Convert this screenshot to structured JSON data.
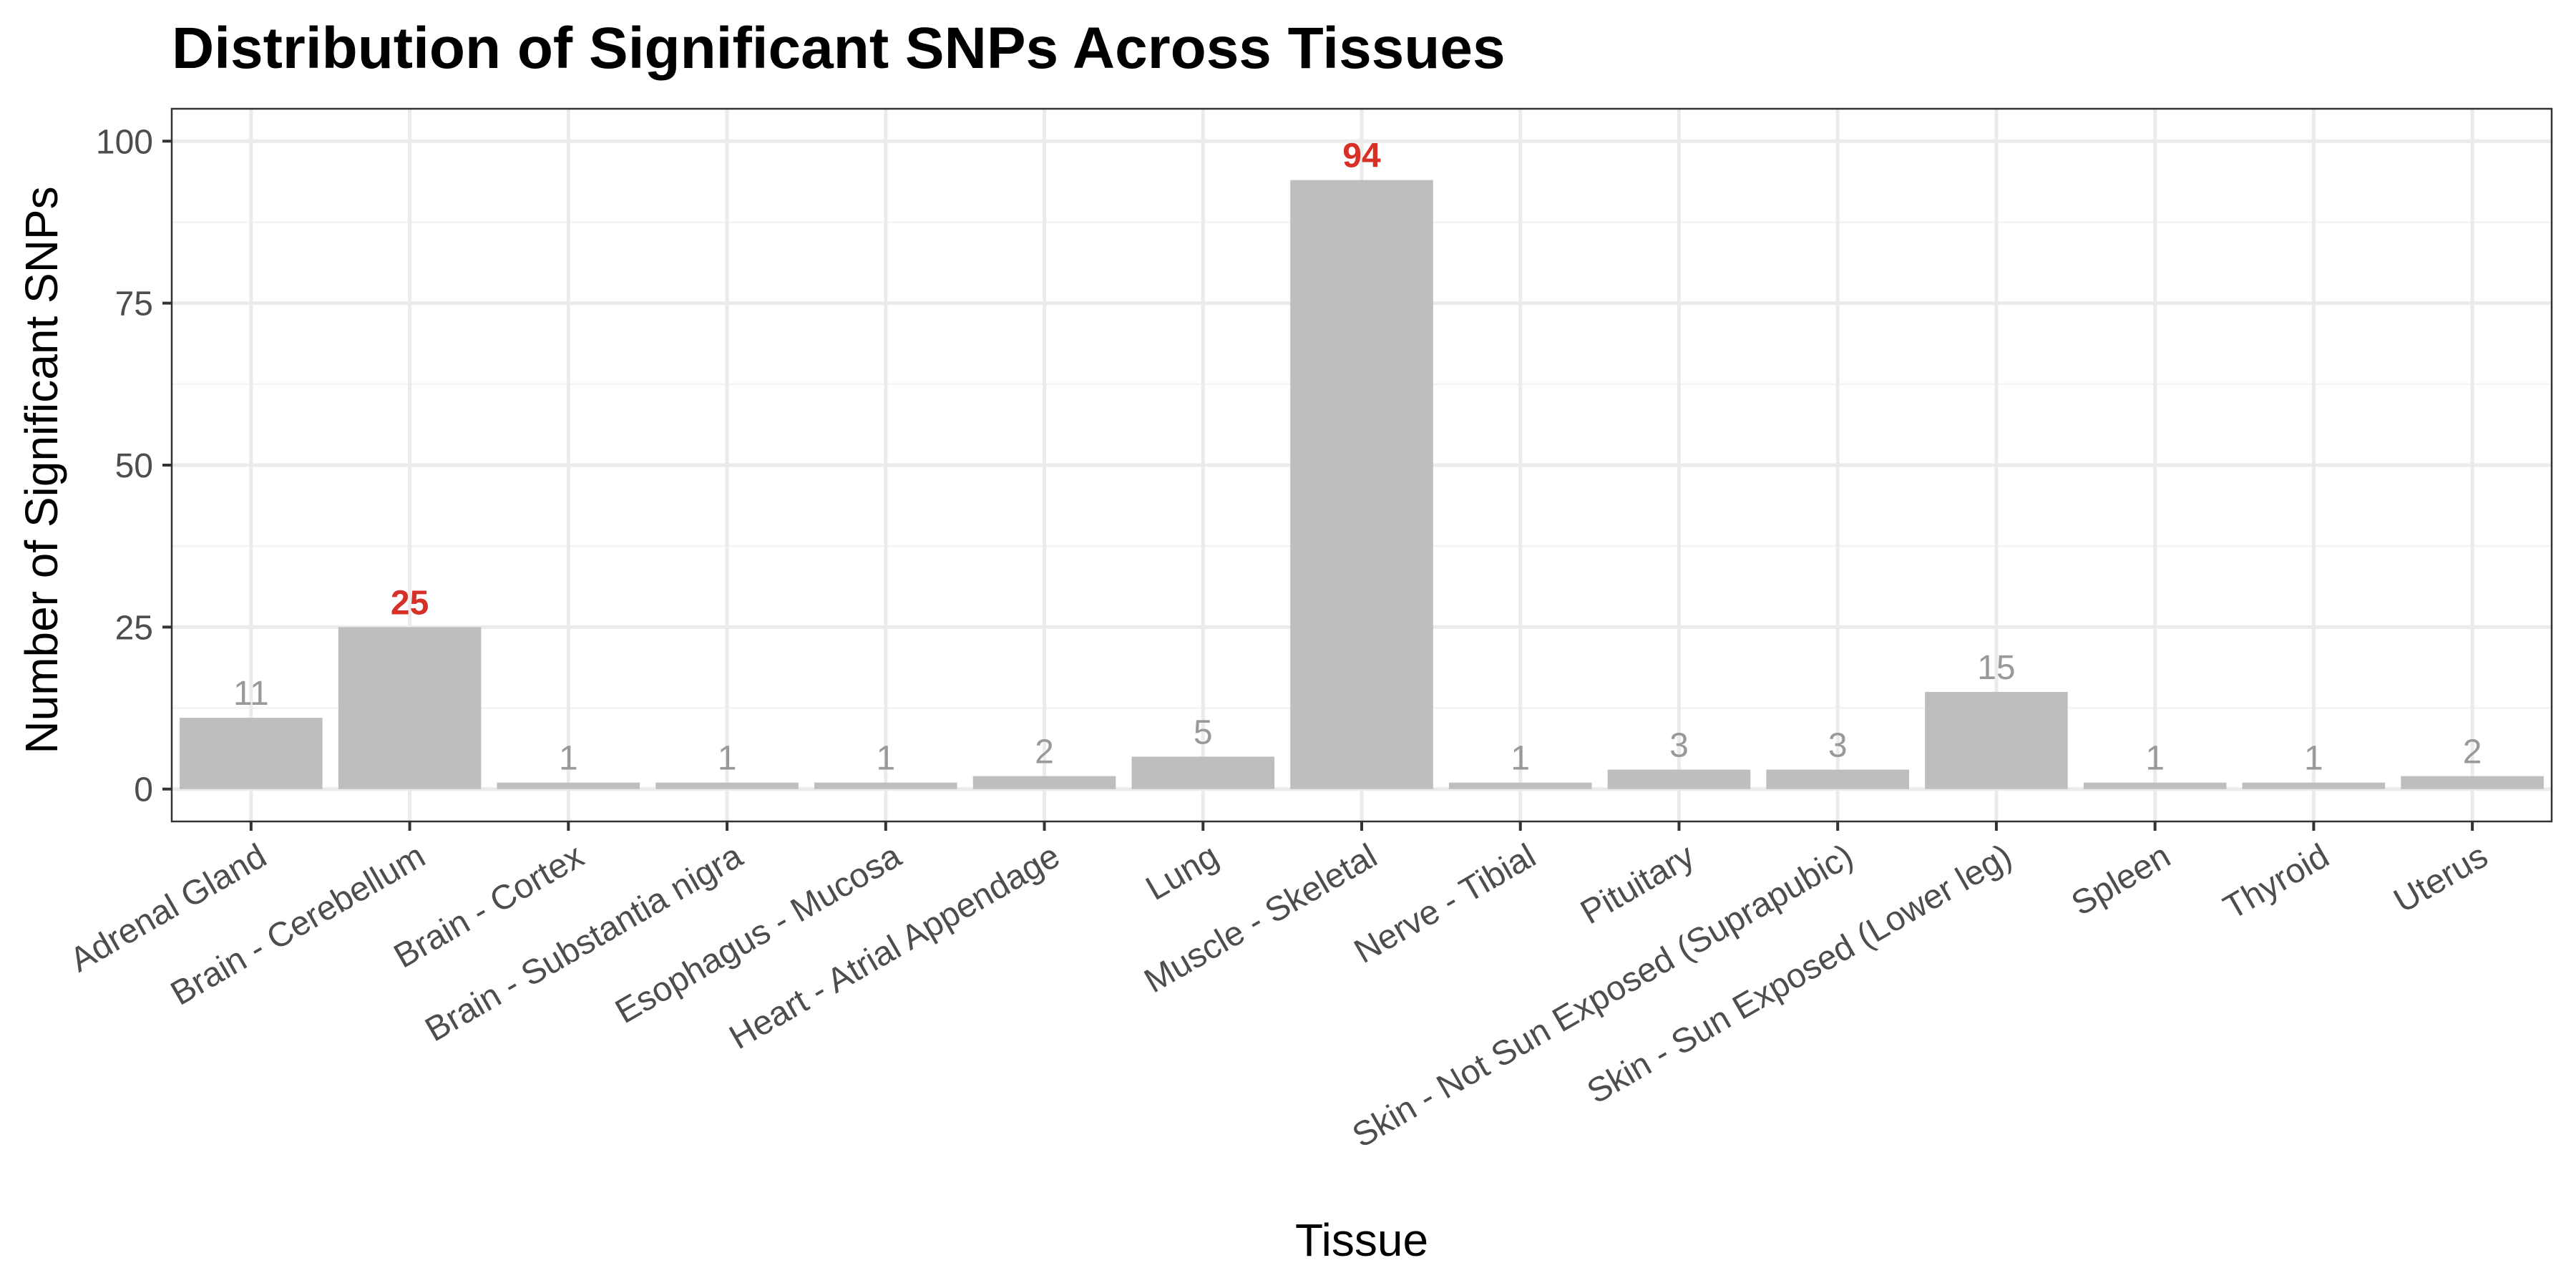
{
  "chart_data": {
    "type": "bar",
    "title": "Distribution of Significant SNPs Across Tissues",
    "xlabel": "Tissue",
    "ylabel": "Number of Significant SNPs",
    "ylim": [
      -5,
      105
    ],
    "yticks": [
      0,
      25,
      50,
      75,
      100
    ],
    "grid": true,
    "legend": "none",
    "categories": [
      "Adrenal Gland",
      "Brain - Cerebellum",
      "Brain - Cortex",
      "Brain - Substantia nigra",
      "Esophagus - Mucosa",
      "Heart - Atrial Appendage",
      "Lung",
      "Muscle - Skeletal",
      "Nerve - Tibial",
      "Pituitary",
      "Skin - Not Sun Exposed (Suprapubic)",
      "Skin - Sun Exposed (Lower leg)",
      "Spleen",
      "Thyroid",
      "Uterus"
    ],
    "values": [
      11,
      25,
      1,
      1,
      1,
      2,
      5,
      94,
      1,
      3,
      3,
      15,
      1,
      1,
      2
    ],
    "highlighted": [
      "Brain - Cerebellum",
      "Muscle - Skeletal"
    ],
    "colors": {
      "bar": "#bebebe",
      "label": "#999999",
      "highlight_label": "#d73027",
      "grid_major": "#ebebeb",
      "grid_minor": "#f3f3f3",
      "panel_border": "#333333"
    }
  }
}
